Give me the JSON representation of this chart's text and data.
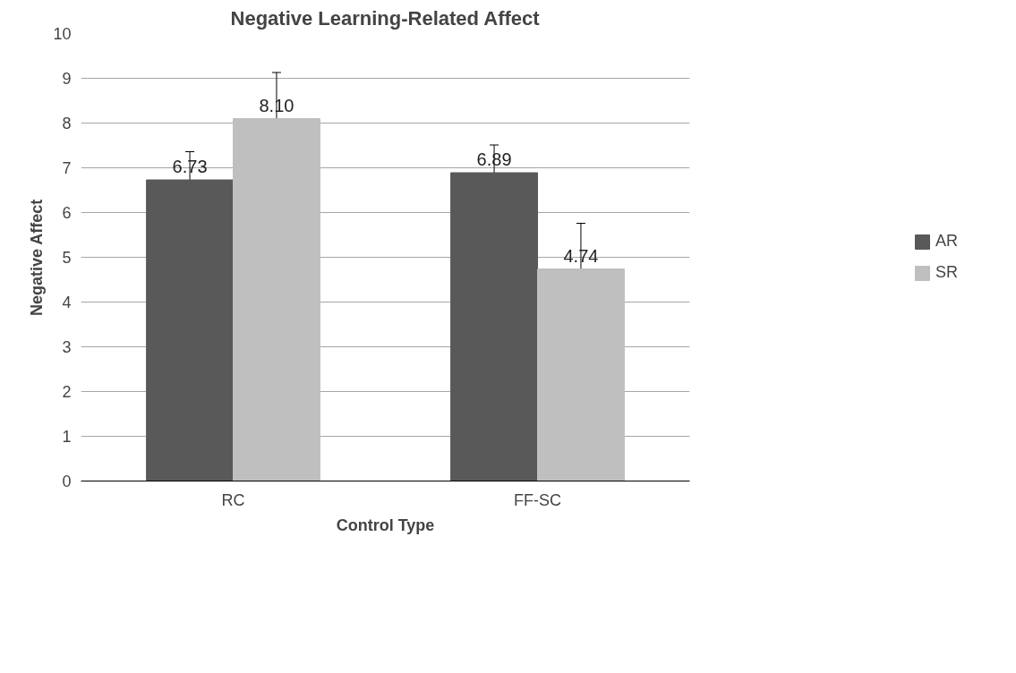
{
  "chart_data": {
    "type": "bar",
    "title": "Negative Learning-Related Affect",
    "xlabel": "Control Type",
    "ylabel": "Negative Affect",
    "categories": [
      "RC",
      "FF-SC"
    ],
    "series": [
      {
        "name": "AR",
        "color": "#595959",
        "values": [
          6.73,
          6.89
        ],
        "errors": [
          0.63,
          0.62
        ],
        "value_labels": [
          "6.73",
          "6.89"
        ]
      },
      {
        "name": "SR",
        "color": "#bfbfbf",
        "values": [
          8.1,
          4.74
        ],
        "errors": [
          1.03,
          1.02
        ],
        "value_labels": [
          "8.10",
          "4.74"
        ]
      }
    ],
    "ylim": [
      0,
      10
    ],
    "yticks": [
      0,
      1,
      2,
      3,
      4,
      5,
      6,
      7,
      8,
      9,
      10
    ],
    "grid": "y",
    "legend": "right"
  }
}
